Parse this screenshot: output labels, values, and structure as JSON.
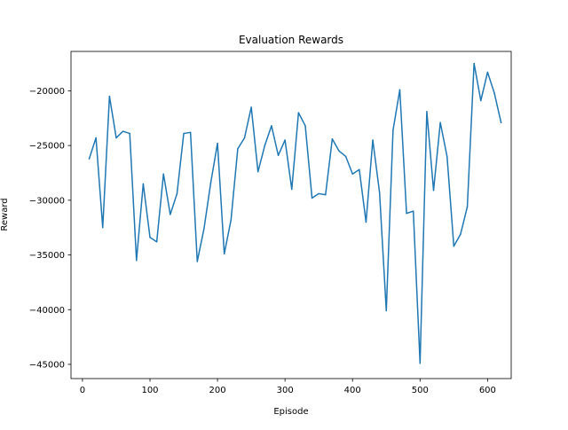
{
  "chart_data": {
    "type": "line",
    "title": "Evaluation Rewards",
    "xlabel": "Episode",
    "ylabel": "Reward",
    "xlim": [
      -17,
      635
    ],
    "ylim": [
      -46300,
      -16400
    ],
    "xticks": [
      0,
      100,
      200,
      300,
      400,
      500,
      600
    ],
    "yticks": [
      -45000,
      -40000,
      -35000,
      -30000,
      -25000,
      -20000
    ],
    "grid": false,
    "series": [
      {
        "color": "#1f77b4",
        "x": [
          10,
          20,
          30,
          40,
          50,
          60,
          70,
          80,
          90,
          100,
          110,
          120,
          130,
          140,
          150,
          160,
          170,
          180,
          190,
          200,
          210,
          220,
          230,
          240,
          250,
          260,
          270,
          280,
          290,
          300,
          310,
          320,
          330,
          340,
          350,
          360,
          370,
          380,
          390,
          400,
          410,
          420,
          430,
          440,
          450,
          460,
          470,
          480,
          490,
          500,
          510,
          520,
          530,
          540,
          550,
          560,
          570,
          580,
          590,
          600,
          610,
          620
        ],
        "y": [
          -26200,
          -24300,
          -32500,
          -20500,
          -24300,
          -23700,
          -23900,
          -35500,
          -28500,
          -33400,
          -33800,
          -27600,
          -31300,
          -29400,
          -23900,
          -23800,
          -35600,
          -32600,
          -28400,
          -24800,
          -34900,
          -31800,
          -25300,
          -24300,
          -21500,
          -27400,
          -25000,
          -23200,
          -25900,
          -24500,
          -29000,
          -22000,
          -23200,
          -29800,
          -29400,
          -29500,
          -24400,
          -25500,
          -26000,
          -27600,
          -27200,
          -32000,
          -24500,
          -29300,
          -40100,
          -23600,
          -19900,
          -31200,
          -31000,
          -44900,
          -21900,
          -29100,
          -22900,
          -26000,
          -34200,
          -33100,
          -30600,
          -17500,
          -20900,
          -18300,
          -20200,
          -22900
        ]
      }
    ]
  }
}
